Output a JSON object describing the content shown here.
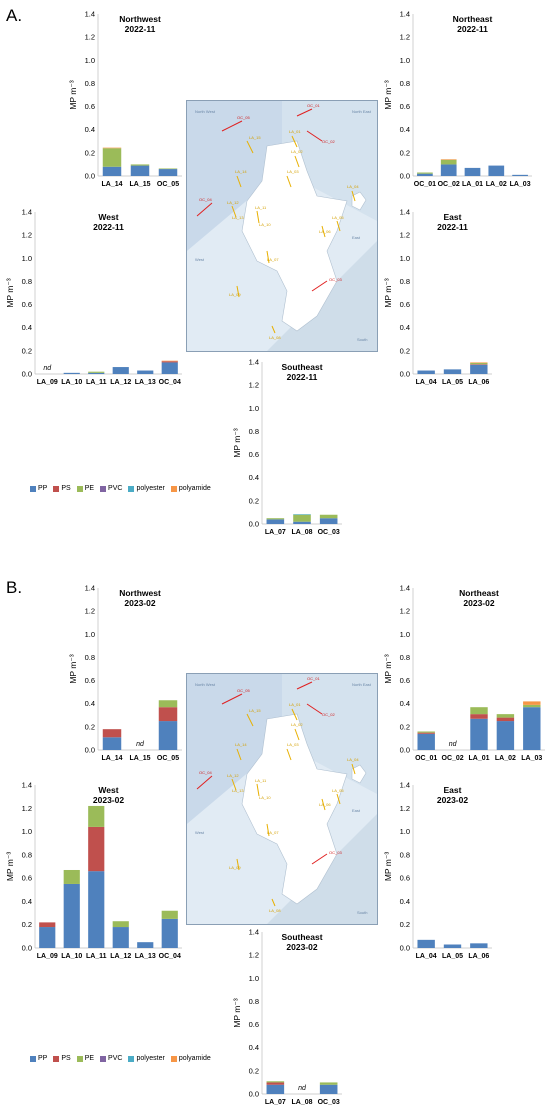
{
  "panel_a_label": "A.",
  "panel_b_label": "B.",
  "legend": [
    {
      "name": "PP",
      "color": "#4f81bd"
    },
    {
      "name": "PS",
      "color": "#c0504d"
    },
    {
      "name": "PE",
      "color": "#9bbb59"
    },
    {
      "name": "PVC",
      "color": "#8064a2"
    },
    {
      "name": "polyester",
      "color": "#4bacc6"
    },
    {
      "name": "polyamide",
      "color": "#f79646"
    }
  ],
  "map_labels": {
    "regions": [
      "North West",
      "North East",
      "West",
      "East",
      "South"
    ],
    "stations": [
      "OC_01",
      "OC_02",
      "OC_03",
      "OC_04",
      "OC_05",
      "LA_01",
      "LA_02",
      "LA_03",
      "LA_04",
      "LA_05",
      "LA_06",
      "LA_07",
      "LA_08",
      "LA_09",
      "LA_10",
      "LA_11",
      "LA_12",
      "LA_13",
      "LA_14",
      "LA_15"
    ]
  },
  "chart_data": [
    {
      "type": "bar",
      "stacked": true,
      "title": "Northwest",
      "subtitle": "2022-11",
      "ylabel": "MP m⁻³",
      "ylim": [
        0,
        1.4
      ],
      "categories": [
        "LA_14",
        "LA_15",
        "OC_05"
      ],
      "series": [
        {
          "name": "PP",
          "values": [
            0.08,
            0.09,
            0.06
          ]
        },
        {
          "name": "PS",
          "values": [
            0,
            0,
            0
          ]
        },
        {
          "name": "PE",
          "values": [
            0.16,
            0.01,
            0.005
          ]
        },
        {
          "name": "PVC",
          "values": [
            0,
            0,
            0
          ]
        },
        {
          "name": "polyester",
          "values": [
            0,
            0,
            0
          ]
        },
        {
          "name": "polyamide",
          "values": [
            0.005,
            0,
            0
          ]
        }
      ]
    },
    {
      "type": "bar",
      "stacked": true,
      "title": "Northeast",
      "subtitle": "2022-11",
      "ylabel": "MP m⁻³",
      "ylim": [
        0,
        1.4
      ],
      "categories": [
        "OC_01",
        "OC_02",
        "LA_01",
        "LA_02",
        "LA_03"
      ],
      "series": [
        {
          "name": "PP",
          "values": [
            0.02,
            0.1,
            0.07,
            0.09,
            0.01
          ]
        },
        {
          "name": "PS",
          "values": [
            0,
            0,
            0,
            0,
            0
          ]
        },
        {
          "name": "PE",
          "values": [
            0.01,
            0.04,
            0,
            0,
            0
          ]
        },
        {
          "name": "PVC",
          "values": [
            0,
            0,
            0,
            0,
            0
          ]
        },
        {
          "name": "polyester",
          "values": [
            0,
            0,
            0,
            0,
            0
          ]
        },
        {
          "name": "polyamide",
          "values": [
            0,
            0.005,
            0,
            0,
            0
          ]
        }
      ]
    },
    {
      "type": "bar",
      "stacked": true,
      "title": "West",
      "subtitle": "2022-11",
      "ylabel": "MP m⁻³",
      "ylim": [
        0,
        1.4
      ],
      "categories": [
        "LA_09",
        "LA_10",
        "LA_11",
        "LA_12",
        "LA_13",
        "OC_04"
      ],
      "nd": [
        "LA_09"
      ],
      "series": [
        {
          "name": "PP",
          "values": [
            0,
            0.01,
            0.01,
            0.06,
            0.03,
            0.1
          ]
        },
        {
          "name": "PS",
          "values": [
            0,
            0,
            0,
            0,
            0,
            0.01
          ]
        },
        {
          "name": "PE",
          "values": [
            0,
            0,
            0.01,
            0,
            0,
            0
          ]
        },
        {
          "name": "PVC",
          "values": [
            0,
            0,
            0,
            0,
            0,
            0
          ]
        },
        {
          "name": "polyester",
          "values": [
            0,
            0,
            0,
            0,
            0,
            0
          ]
        },
        {
          "name": "polyamide",
          "values": [
            0,
            0,
            0,
            0,
            0,
            0.005
          ]
        }
      ]
    },
    {
      "type": "bar",
      "stacked": true,
      "title": "East",
      "subtitle": "2022-11",
      "ylabel": "MP m⁻³",
      "ylim": [
        0,
        1.4
      ],
      "categories": [
        "LA_04",
        "LA_05",
        "LA_06"
      ],
      "series": [
        {
          "name": "PP",
          "values": [
            0.03,
            0.04,
            0.08
          ]
        },
        {
          "name": "PS",
          "values": [
            0,
            0,
            0.005
          ]
        },
        {
          "name": "PE",
          "values": [
            0,
            0,
            0.01
          ]
        },
        {
          "name": "PVC",
          "values": [
            0,
            0,
            0
          ]
        },
        {
          "name": "polyester",
          "values": [
            0,
            0,
            0
          ]
        },
        {
          "name": "polyamide",
          "values": [
            0,
            0,
            0.005
          ]
        }
      ]
    },
    {
      "type": "bar",
      "stacked": true,
      "title": "Southeast",
      "subtitle": "2022-11",
      "ylabel": "MP m⁻³",
      "ylim": [
        0,
        1.4
      ],
      "categories": [
        "LA_07",
        "LA_08",
        "OC_03"
      ],
      "series": [
        {
          "name": "PP",
          "values": [
            0.04,
            0.02,
            0.05
          ]
        },
        {
          "name": "PS",
          "values": [
            0,
            0,
            0
          ]
        },
        {
          "name": "PE",
          "values": [
            0.01,
            0.06,
            0.03
          ]
        },
        {
          "name": "PVC",
          "values": [
            0,
            0,
            0
          ]
        },
        {
          "name": "polyester",
          "values": [
            0,
            0.005,
            0
          ]
        },
        {
          "name": "polyamide",
          "values": [
            0,
            0,
            0
          ]
        }
      ]
    },
    {
      "type": "bar",
      "stacked": true,
      "title": "Northwest",
      "subtitle": "2023-02",
      "ylabel": "MP m⁻³",
      "ylim": [
        0,
        1.4
      ],
      "categories": [
        "LA_14",
        "LA_15",
        "OC_05"
      ],
      "nd": [
        "LA_15"
      ],
      "series": [
        {
          "name": "PP",
          "values": [
            0.11,
            0,
            0.25
          ]
        },
        {
          "name": "PS",
          "values": [
            0.07,
            0,
            0.12
          ]
        },
        {
          "name": "PE",
          "values": [
            0,
            0,
            0.06
          ]
        },
        {
          "name": "PVC",
          "values": [
            0,
            0,
            0
          ]
        },
        {
          "name": "polyester",
          "values": [
            0,
            0,
            0
          ]
        },
        {
          "name": "polyamide",
          "values": [
            0,
            0,
            0
          ]
        }
      ]
    },
    {
      "type": "bar",
      "stacked": true,
      "title": "Northeast",
      "subtitle": "2023-02",
      "ylabel": "MP m⁻³",
      "ylim": [
        0,
        1.4
      ],
      "categories": [
        "OC_01",
        "OC_02",
        "LA_01",
        "LA_02",
        "LA_03"
      ],
      "nd": [
        "OC_02"
      ],
      "series": [
        {
          "name": "PP",
          "values": [
            0.14,
            0,
            0.27,
            0.25,
            0.37
          ]
        },
        {
          "name": "PS",
          "values": [
            0.01,
            0,
            0.04,
            0.03,
            0
          ]
        },
        {
          "name": "PE",
          "values": [
            0.01,
            0,
            0.06,
            0.03,
            0.02
          ]
        },
        {
          "name": "PVC",
          "values": [
            0,
            0,
            0,
            0,
            0
          ]
        },
        {
          "name": "polyester",
          "values": [
            0,
            0,
            0,
            0,
            0
          ]
        },
        {
          "name": "polyamide",
          "values": [
            0,
            0,
            0,
            0,
            0.03
          ]
        }
      ]
    },
    {
      "type": "bar",
      "stacked": true,
      "title": "West",
      "subtitle": "2023-02",
      "ylabel": "MP m⁻³",
      "ylim": [
        0,
        1.4
      ],
      "categories": [
        "LA_09",
        "LA_10",
        "LA_11",
        "LA_12",
        "LA_13",
        "OC_04"
      ],
      "series": [
        {
          "name": "PP",
          "values": [
            0.18,
            0.55,
            0.66,
            0.18,
            0.05,
            0.25
          ]
        },
        {
          "name": "PS",
          "values": [
            0.04,
            0,
            0.38,
            0,
            0,
            0
          ]
        },
        {
          "name": "PE",
          "values": [
            0,
            0.12,
            0.18,
            0.05,
            0,
            0.07
          ]
        },
        {
          "name": "PVC",
          "values": [
            0,
            0,
            0,
            0,
            0,
            0
          ]
        },
        {
          "name": "polyester",
          "values": [
            0,
            0,
            0,
            0,
            0,
            0
          ]
        },
        {
          "name": "polyamide",
          "values": [
            0,
            0,
            0,
            0,
            0,
            0
          ]
        }
      ]
    },
    {
      "type": "bar",
      "stacked": true,
      "title": "East",
      "subtitle": "2023-02",
      "ylabel": "MP m⁻³",
      "ylim": [
        0,
        1.4
      ],
      "categories": [
        "LA_04",
        "LA_05",
        "LA_06"
      ],
      "series": [
        {
          "name": "PP",
          "values": [
            0.07,
            0.03,
            0.04
          ]
        },
        {
          "name": "PS",
          "values": [
            0,
            0,
            0
          ]
        },
        {
          "name": "PE",
          "values": [
            0,
            0,
            0
          ]
        },
        {
          "name": "PVC",
          "values": [
            0,
            0,
            0
          ]
        },
        {
          "name": "polyester",
          "values": [
            0,
            0,
            0
          ]
        },
        {
          "name": "polyamide",
          "values": [
            0,
            0,
            0
          ]
        }
      ]
    },
    {
      "type": "bar",
      "stacked": true,
      "title": "Southeast",
      "subtitle": "2023-02",
      "ylabel": "MP m⁻³",
      "ylim": [
        0,
        1.4
      ],
      "categories": [
        "LA_07",
        "LA_08",
        "OC_03"
      ],
      "nd": [
        "LA_08"
      ],
      "series": [
        {
          "name": "PP",
          "values": [
            0.08,
            0,
            0.08
          ]
        },
        {
          "name": "PS",
          "values": [
            0.02,
            0,
            0
          ]
        },
        {
          "name": "PE",
          "values": [
            0.01,
            0,
            0.02
          ]
        },
        {
          "name": "PVC",
          "values": [
            0,
            0,
            0
          ]
        },
        {
          "name": "polyester",
          "values": [
            0,
            0,
            0
          ]
        },
        {
          "name": "polyamide",
          "values": [
            0,
            0,
            0
          ]
        }
      ]
    }
  ]
}
